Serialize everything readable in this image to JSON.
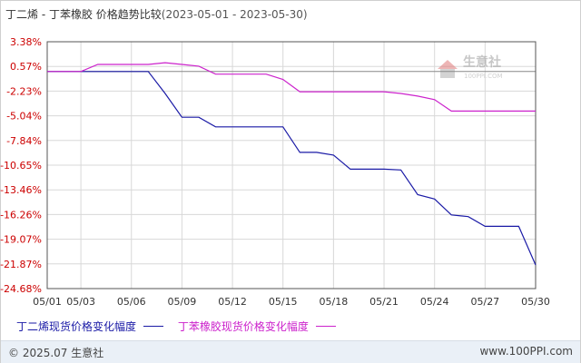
{
  "header": {
    "title": "丁二烯 - 丁苯橡胶 价格趋势比较",
    "date_range": "(2023-05-01 - 2023-05-30)"
  },
  "watermark": {
    "brand": "生意社",
    "url": "100PPI.COM"
  },
  "footer": {
    "copyright": "© 2025.07 生意社",
    "site": "www.100PPI.com"
  },
  "colors": {
    "series1": "#1a1aa6",
    "series2": "#cc22cc",
    "axis": "#555555",
    "grid": "#d8d8d8",
    "tick_text_y": "#cc0000",
    "tick_text_x": "#333333"
  },
  "chart_data": {
    "type": "line",
    "x": [
      "05/01",
      "05/02",
      "05/03",
      "05/04",
      "05/05",
      "05/06",
      "05/07",
      "05/08",
      "05/09",
      "05/10",
      "05/11",
      "05/12",
      "05/13",
      "05/14",
      "05/15",
      "05/16",
      "05/17",
      "05/18",
      "05/19",
      "05/20",
      "05/21",
      "05/22",
      "05/23",
      "05/24",
      "05/25",
      "05/26",
      "05/27",
      "05/28",
      "05/29",
      "05/30"
    ],
    "x_tick_labels": [
      "05/01",
      "05/03",
      "05/06",
      "05/09",
      "05/12",
      "05/15",
      "05/18",
      "05/21",
      "05/24",
      "05/27",
      "05/30"
    ],
    "y_tick_labels": [
      "3.38%",
      "0.57%",
      "-2.23%",
      "-5.04%",
      "-7.84%",
      "-10.65%",
      "-13.46%",
      "-16.26%",
      "-19.07%",
      "-21.87%",
      "-24.68%"
    ],
    "y_ticks": [
      3.38,
      0.57,
      -2.23,
      -5.04,
      -7.84,
      -10.65,
      -13.46,
      -16.26,
      -19.07,
      -21.87,
      -24.68
    ],
    "ylim": [
      -24.68,
      3.38
    ],
    "grid": true,
    "legend_position": "bottom",
    "series": [
      {
        "name": "丁二烯现货价格变化幅度",
        "values": [
          0,
          0,
          0,
          0,
          0,
          0,
          0,
          -2.5,
          -5.2,
          -5.2,
          -6.3,
          -6.3,
          -6.3,
          -6.3,
          -6.3,
          -9.2,
          -9.2,
          -9.5,
          -11.1,
          -11.1,
          -11.1,
          -11.2,
          -14.0,
          -14.5,
          -16.3,
          -16.5,
          -17.6,
          -17.6,
          -17.6,
          -22.0
        ]
      },
      {
        "name": "丁苯橡胶现货价格变化幅度",
        "values": [
          0,
          0,
          0,
          0.8,
          0.8,
          0.8,
          0.8,
          1.0,
          0.8,
          0.6,
          -0.3,
          -0.3,
          -0.3,
          -0.3,
          -0.9,
          -2.3,
          -2.3,
          -2.3,
          -2.3,
          -2.3,
          -2.3,
          -2.5,
          -2.8,
          -3.2,
          -4.5,
          -4.5,
          -4.5,
          -4.5,
          -4.5,
          -4.5
        ]
      }
    ]
  },
  "legend": {
    "series1_label": "丁二烯现货价格变化幅度",
    "series2_label": "丁苯橡胶现货价格变化幅度"
  }
}
